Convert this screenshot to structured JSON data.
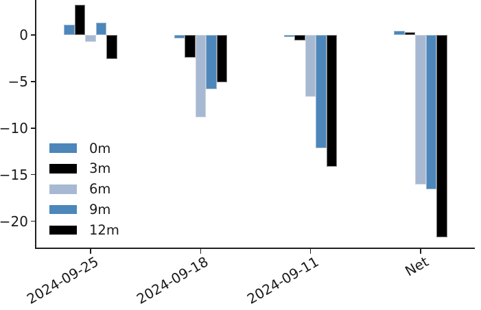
{
  "chart_data": {
    "type": "bar",
    "title": "",
    "xlabel": "",
    "ylabel": "",
    "categories": [
      "2024-09-25",
      "2024-09-18",
      "2024-09-11",
      "Net"
    ],
    "series": [
      {
        "name": "0m",
        "color": "#4d86ba",
        "values": [
          1.1,
          -0.35,
          -0.25,
          0.45
        ]
      },
      {
        "name": "3m",
        "color": "#000000",
        "values": [
          3.25,
          -2.45,
          -0.55,
          0.3
        ]
      },
      {
        "name": "6m",
        "color": "#a7b9d2",
        "values": [
          -0.7,
          -8.8,
          -6.65,
          -16.05
        ]
      },
      {
        "name": "9m",
        "color": "#4d86ba",
        "values": [
          1.3,
          -5.8,
          -12.15,
          -16.6
        ]
      },
      {
        "name": "12m",
        "color": "#000000",
        "values": [
          -2.6,
          -5.1,
          -14.1,
          -21.75
        ]
      }
    ],
    "yticks": {
      "values": [
        0,
        -5,
        -10,
        -15,
        -20
      ],
      "labels": [
        "0",
        "−5",
        "−10",
        "−15",
        "−20"
      ]
    },
    "ylim": [
      -22.9,
      3.76
    ],
    "xtick_rotation_deg": 30,
    "legend_position": "lower-left",
    "grid": false,
    "axis_color": "#1f1f1f",
    "background_color": "#ffffff"
  }
}
